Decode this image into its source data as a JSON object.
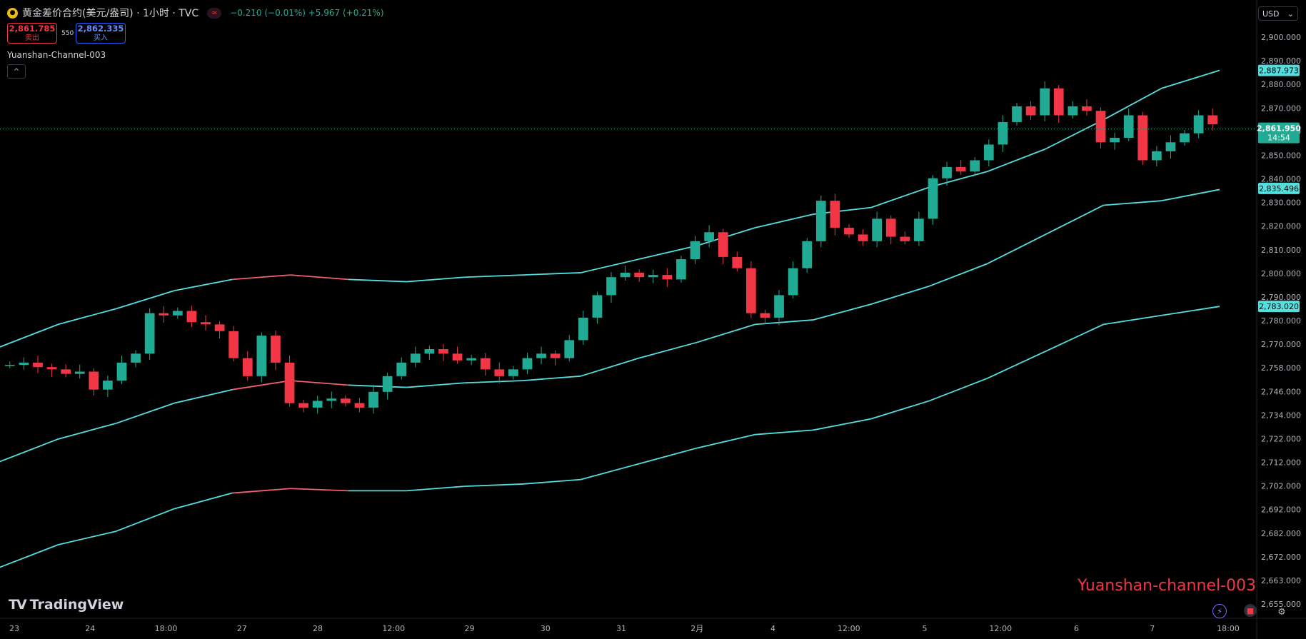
{
  "header": {
    "symbol_icon": "gold-coin-icon",
    "title": "黄金差价合约(美元/盎司) · 1小时 · TVC",
    "badge": "≈",
    "change": "−0.210 (−0.01%) +5.967 (+0.21%)"
  },
  "quotes": {
    "sell_price": "2,861.785",
    "sell_label": "卖出",
    "spread": "550",
    "buy_price": "2,862.335",
    "buy_label": "买入"
  },
  "indicator": {
    "name": "Yuanshan-Channel-003",
    "collapse_icon": "chevron-up-icon"
  },
  "currency": {
    "selected": "USD"
  },
  "branding": {
    "logo": "TradingView",
    "watermark": "Yuanshan-channel-003"
  },
  "colors": {
    "up": "#22ab94",
    "down": "#f23645",
    "channel": "#55dede",
    "channel_flat": "#f06070",
    "background": "#000000"
  },
  "chart_data": {
    "type": "candlestick",
    "y_ticks": [
      "2,900.000",
      "2,890.000",
      "2,880.000",
      "2,870.000",
      "2,860.000",
      "2,850.000",
      "2,840.000",
      "2,830.000",
      "2,820.000",
      "2,810.000",
      "2,800.000",
      "2,790.000",
      "2,780.000",
      "2,770.000",
      "2,758.000",
      "2,746.000",
      "2,734.000",
      "2,722.000",
      "2,712.000",
      "2,702.000",
      "2,692.000",
      "2,682.000",
      "2,672.000",
      "2,663.000",
      "2,655.000"
    ],
    "ylim": [
      2650,
      2905
    ],
    "x_labels": [
      "23",
      "24",
      "18:00",
      "27",
      "28",
      "12:00",
      "29",
      "30",
      "31",
      "2月",
      "4",
      "12:00",
      "5",
      "12:00",
      "6",
      "7",
      "18:00"
    ],
    "last_price": {
      "value": 2861.95,
      "label": "2,861.950",
      "countdown": "14:54"
    },
    "channel_labels": [
      {
        "value": 2887.973,
        "label": "2,887.973"
      },
      {
        "value": 2835.496,
        "label": "2,835.496"
      },
      {
        "value": 2783.02,
        "label": "2,783.020"
      }
    ],
    "channel": {
      "upper": [
        2765,
        2775,
        2782,
        2790,
        2795,
        2797,
        2795,
        2794,
        2796,
        2797,
        2798,
        2804,
        2810,
        2818,
        2824,
        2827,
        2836,
        2843,
        2853,
        2866,
        2880,
        2888
      ],
      "middle": [
        2714,
        2724,
        2731,
        2740,
        2746,
        2750,
        2748,
        2747,
        2749,
        2750,
        2752,
        2760,
        2767,
        2775,
        2777,
        2784,
        2792,
        2802,
        2815,
        2828,
        2830,
        2835
      ],
      "lower": [
        2667,
        2677,
        2683,
        2693,
        2700,
        2702,
        2701,
        2701,
        2703,
        2704,
        2706,
        2713,
        2720,
        2726,
        2728,
        2733,
        2741,
        2751,
        2763,
        2775,
        2779,
        2783
      ],
      "flat_segments": [
        [
          4,
          6
        ]
      ]
    },
    "price_path": [
      2757,
      2758,
      2756,
      2755,
      2753,
      2754,
      2746,
      2750,
      2758,
      2762,
      2780,
      2779,
      2781,
      2776,
      2775,
      2772,
      2760,
      2752,
      2770,
      2758,
      2740,
      2738,
      2741,
      2742,
      2740,
      2738,
      2745,
      2752,
      2758,
      2762,
      2764,
      2762,
      2759,
      2760,
      2755,
      2752,
      2755,
      2760,
      2762,
      2760,
      2768,
      2778,
      2788,
      2796,
      2798,
      2796,
      2797,
      2795,
      2804,
      2812,
      2816,
      2805,
      2800,
      2780,
      2778,
      2788,
      2800,
      2812,
      2830,
      2818,
      2815,
      2812,
      2822,
      2814,
      2812,
      2822,
      2840,
      2845,
      2843,
      2848,
      2855,
      2865,
      2872,
      2868,
      2880,
      2868,
      2872,
      2870,
      2856,
      2858,
      2868,
      2848,
      2852,
      2856,
      2860,
      2868,
      2864
    ]
  }
}
